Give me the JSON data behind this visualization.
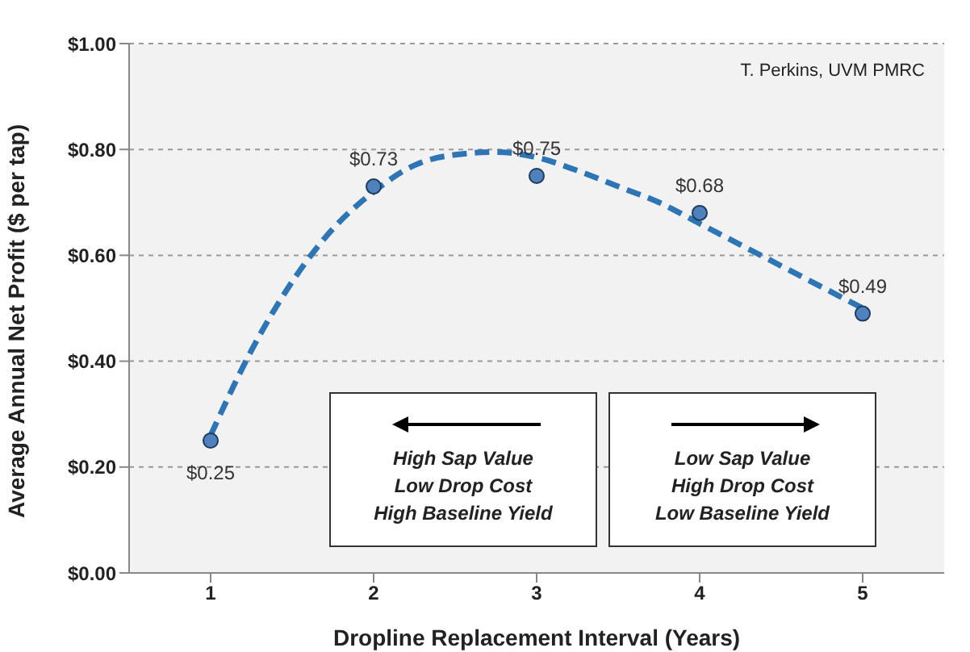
{
  "chart_data": {
    "type": "scatter",
    "xlabel": "Dropline Replacement Interval (Years)",
    "ylabel": "Average Annual Net Profit ($ per tap)",
    "x": [
      1,
      2,
      3,
      4,
      5
    ],
    "series": [
      {
        "color": "#4f81bd",
        "values": [
          0.25,
          0.73,
          0.75,
          0.68,
          0.49
        ],
        "value_labels": [
          "$0.25",
          "$0.73",
          "$0.75",
          "$0.68",
          "$0.49"
        ]
      },
      {
        "type": "line",
        "color": "#2e75b6",
        "line_style": "dashed",
        "marker": "none",
        "x": [
          1,
          1.25,
          1.5,
          1.75,
          2,
          2.25,
          2.5,
          2.75,
          3,
          3.25,
          3.5,
          3.75,
          4,
          4.25,
          4.5,
          4.75,
          5
        ],
        "values": [
          0.26,
          0.42,
          0.55,
          0.65,
          0.72,
          0.77,
          0.79,
          0.795,
          0.785,
          0.76,
          0.73,
          0.7,
          0.66,
          0.62,
          0.58,
          0.54,
          0.5
        ]
      }
    ],
    "marker": "circle",
    "xlim": [
      0.5,
      5.5
    ],
    "xticks": [
      1,
      2,
      3,
      4,
      5
    ],
    "ylim": [
      0,
      1
    ],
    "yticks": [
      {
        "value": 0,
        "label": "$0.00"
      },
      {
        "value": 0.2,
        "label": "$0.20"
      },
      {
        "value": 0.4,
        "label": "$0.40"
      },
      {
        "value": 0.6,
        "label": "$0.60"
      },
      {
        "value": 0.8,
        "label": "$0.80"
      },
      {
        "value": 1,
        "label": "$1.00"
      }
    ],
    "grid": "y",
    "legend": false,
    "annotations": [
      "T. Perkins, UVM PMRC",
      "High Sap Value\nLow Drop Cost\nHigh Baseline Yield",
      "Low Sap Value\nHigh Drop Cost\nLow Baseline Yield"
    ]
  }
}
